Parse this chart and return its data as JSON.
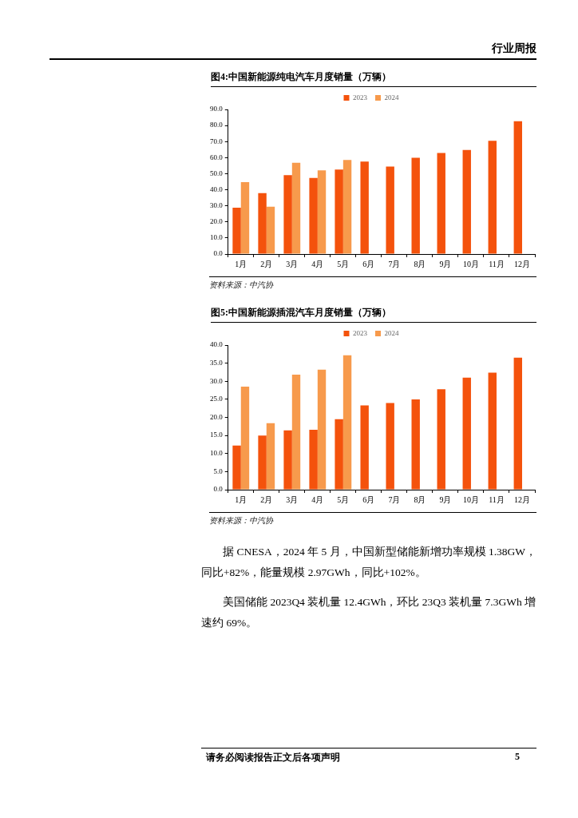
{
  "chart_data": [
    {
      "type": "bar",
      "title": "图4:中国新能源纯电汽车月度销量（万辆）",
      "categories": [
        "1月",
        "2月",
        "3月",
        "4月",
        "5月",
        "6月",
        "7月",
        "8月",
        "9月",
        "10月",
        "11月",
        "12月"
      ],
      "series": [
        {
          "name": "2023",
          "color": "#f4520c",
          "values": [
            28.9,
            37.9,
            49.1,
            47.4,
            52.6,
            57.6,
            54.4,
            59.9,
            62.9,
            64.8,
            70.5,
            82.7
          ]
        },
        {
          "name": "2024",
          "color": "#f79a4c",
          "values": [
            44.7,
            29.4,
            56.8,
            52.1,
            58.5,
            null,
            null,
            null,
            null,
            null,
            null,
            null
          ]
        }
      ],
      "ylim": [
        0,
        90
      ],
      "yticks": [
        {
          "value": 0,
          "label": "0.0"
        },
        {
          "value": 10,
          "label": "10.0"
        },
        {
          "value": 20,
          "label": "20.0"
        },
        {
          "value": 30,
          "label": "30.0"
        },
        {
          "value": 40,
          "label": "40.0"
        },
        {
          "value": 50,
          "label": "50.0"
        },
        {
          "value": 60,
          "label": "60.0"
        },
        {
          "value": 70,
          "label": "70.0"
        },
        {
          "value": 80,
          "label": "80.0"
        },
        {
          "value": 90,
          "label": "90.0"
        }
      ],
      "legend": "top",
      "annotations": [
        "行业周报",
        "资料来源：中汽协"
      ]
    },
    {
      "type": "bar",
      "title": "图5:中国新能源插混汽车月度销量（万辆）",
      "categories": [
        "1月",
        "2月",
        "3月",
        "4月",
        "5月",
        "6月",
        "7月",
        "8月",
        "9月",
        "10月",
        "11月",
        "12月"
      ],
      "series": [
        {
          "name": "2023",
          "color": "#f4520c",
          "values": [
            12.2,
            15.0,
            16.4,
            16.6,
            19.5,
            23.3,
            24.0,
            25.0,
            27.8,
            31.0,
            32.4,
            36.5
          ]
        },
        {
          "name": "2024",
          "color": "#f79a4c",
          "values": [
            28.5,
            18.4,
            31.8,
            33.2,
            37.2,
            null,
            null,
            null,
            null,
            null,
            null,
            null
          ]
        }
      ],
      "ylim": [
        0,
        40
      ],
      "yticks": [
        {
          "value": 0,
          "label": "0.0"
        },
        {
          "value": 5,
          "label": "5.0"
        },
        {
          "value": 10,
          "label": "10.0"
        },
        {
          "value": 15,
          "label": "15.0"
        },
        {
          "value": 20,
          "label": "20.0"
        },
        {
          "value": 25,
          "label": "25.0"
        },
        {
          "value": 30,
          "label": "30.0"
        },
        {
          "value": 35,
          "label": "35.0"
        },
        {
          "value": 40,
          "label": "40.0"
        }
      ],
      "legend": "top",
      "annotations": [
        "资料来源：中汽协",
        "据 CNESA，2024 年 5 月，中国新型储能新增功率规模 1.38GW，同比+82%，能量规模 2.97GWh，同比+102%。",
        "美国储能 2023Q4 装机量 12.4GWh，环比 23Q3 装机量 7.3GWh 增速约 69%。",
        "请务必阅读报告正文后各项声明",
        "5"
      ]
    }
  ]
}
